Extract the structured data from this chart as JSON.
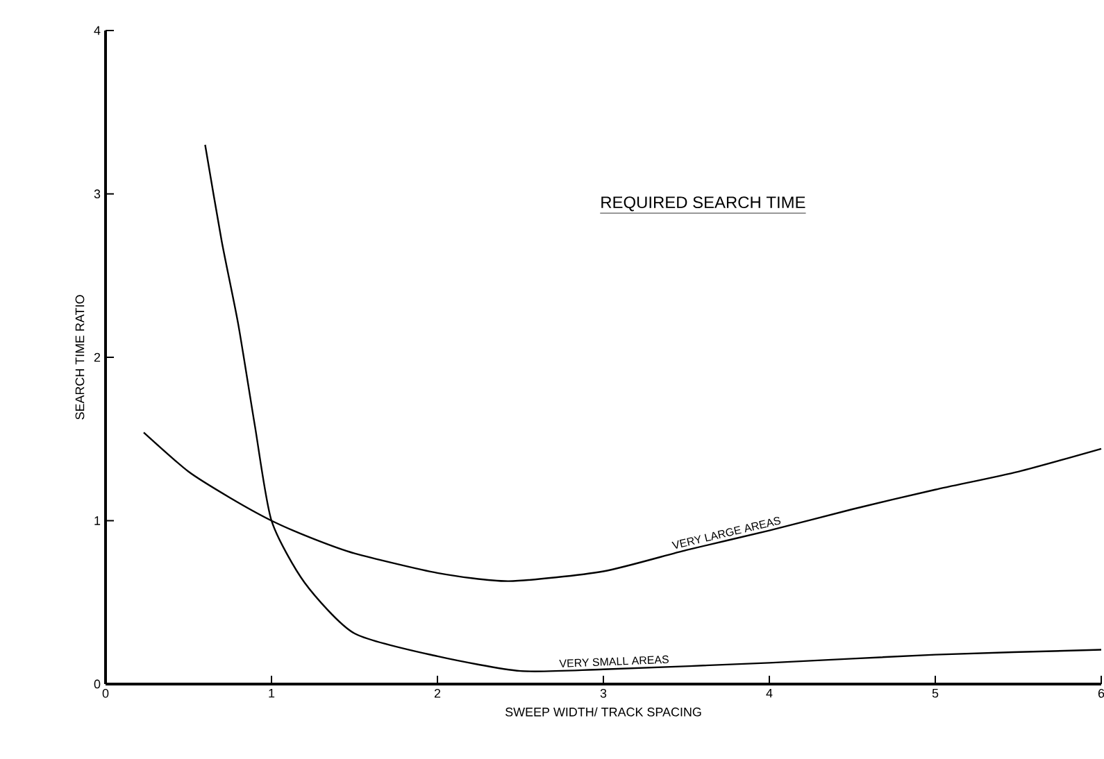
{
  "chart_data": {
    "type": "line",
    "title": "REQUIRED SEARCH TIME",
    "xlabel": "SWEEP WIDTH/ TRACK SPACING",
    "ylabel": "SEARCH TIME RATIO",
    "series": [
      {
        "name": "VERY LARGE AREAS",
        "color": "#000000",
        "x": [
          0.23,
          0.5,
          0.75,
          1,
          1.25,
          1.5,
          2,
          2.43,
          3,
          3.5,
          4,
          4.5,
          5,
          5.5,
          6
        ],
        "values": [
          1.54,
          1.3,
          1.14,
          1.0,
          0.89,
          0.8,
          0.68,
          0.63,
          0.69,
          0.82,
          0.94,
          1.07,
          1.19,
          1.3,
          1.44
        ]
      },
      {
        "name": "VERY SMALL AREAS",
        "color": "#000000",
        "x": [
          0.6,
          0.7,
          0.8,
          0.9,
          1,
          1.2,
          1.5,
          2,
          2.5,
          3,
          4,
          5,
          6
        ],
        "values": [
          3.3,
          2.71,
          2.2,
          1.58,
          1.0,
          0.62,
          0.31,
          0.17,
          0.08,
          0.09,
          0.13,
          0.18,
          0.21
        ]
      }
    ],
    "xlim": [
      0,
      6
    ],
    "ylim": [
      0,
      4
    ],
    "xticks": [
      0,
      1,
      2,
      3,
      4,
      5,
      6
    ],
    "yticks": [
      0,
      1,
      2,
      3,
      4
    ],
    "grid": false,
    "legend": false,
    "marker": "none",
    "line_style": "solid"
  }
}
